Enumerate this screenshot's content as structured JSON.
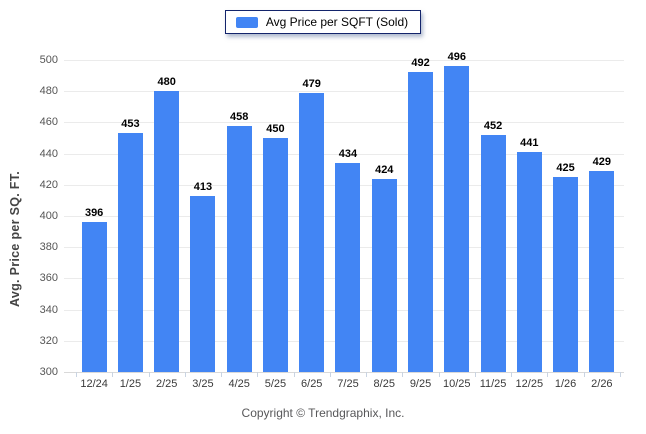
{
  "legend": {
    "label": "Avg Price per SQFT (Sold)",
    "swatch_icon": "bar-swatch"
  },
  "footer": {
    "copyright": "Copyright © Trendgraphix, Inc."
  },
  "colors": {
    "bar": "#4285f4",
    "grid": "#ebebeb",
    "baseline": "#d9d9d9",
    "legend_border": "#13246b"
  },
  "chart_data": {
    "type": "bar",
    "title": "",
    "xlabel": "",
    "ylabel": "Avg. Price per SQ. FT.",
    "ylim": [
      300,
      500
    ],
    "ytick_step": 20,
    "grid": true,
    "legend_position": "top-center",
    "categories": [
      "12/24",
      "1/25",
      "2/25",
      "3/25",
      "4/25",
      "5/25",
      "6/25",
      "7/25",
      "8/25",
      "9/25",
      "10/25",
      "11/25",
      "12/25",
      "1/26",
      "2/26"
    ],
    "series": [
      {
        "name": "Avg Price per SQFT (Sold)",
        "values": [
          396,
          453,
          480,
          413,
          458,
          450,
          479,
          434,
          424,
          492,
          496,
          452,
          441,
          425,
          429
        ]
      }
    ]
  }
}
